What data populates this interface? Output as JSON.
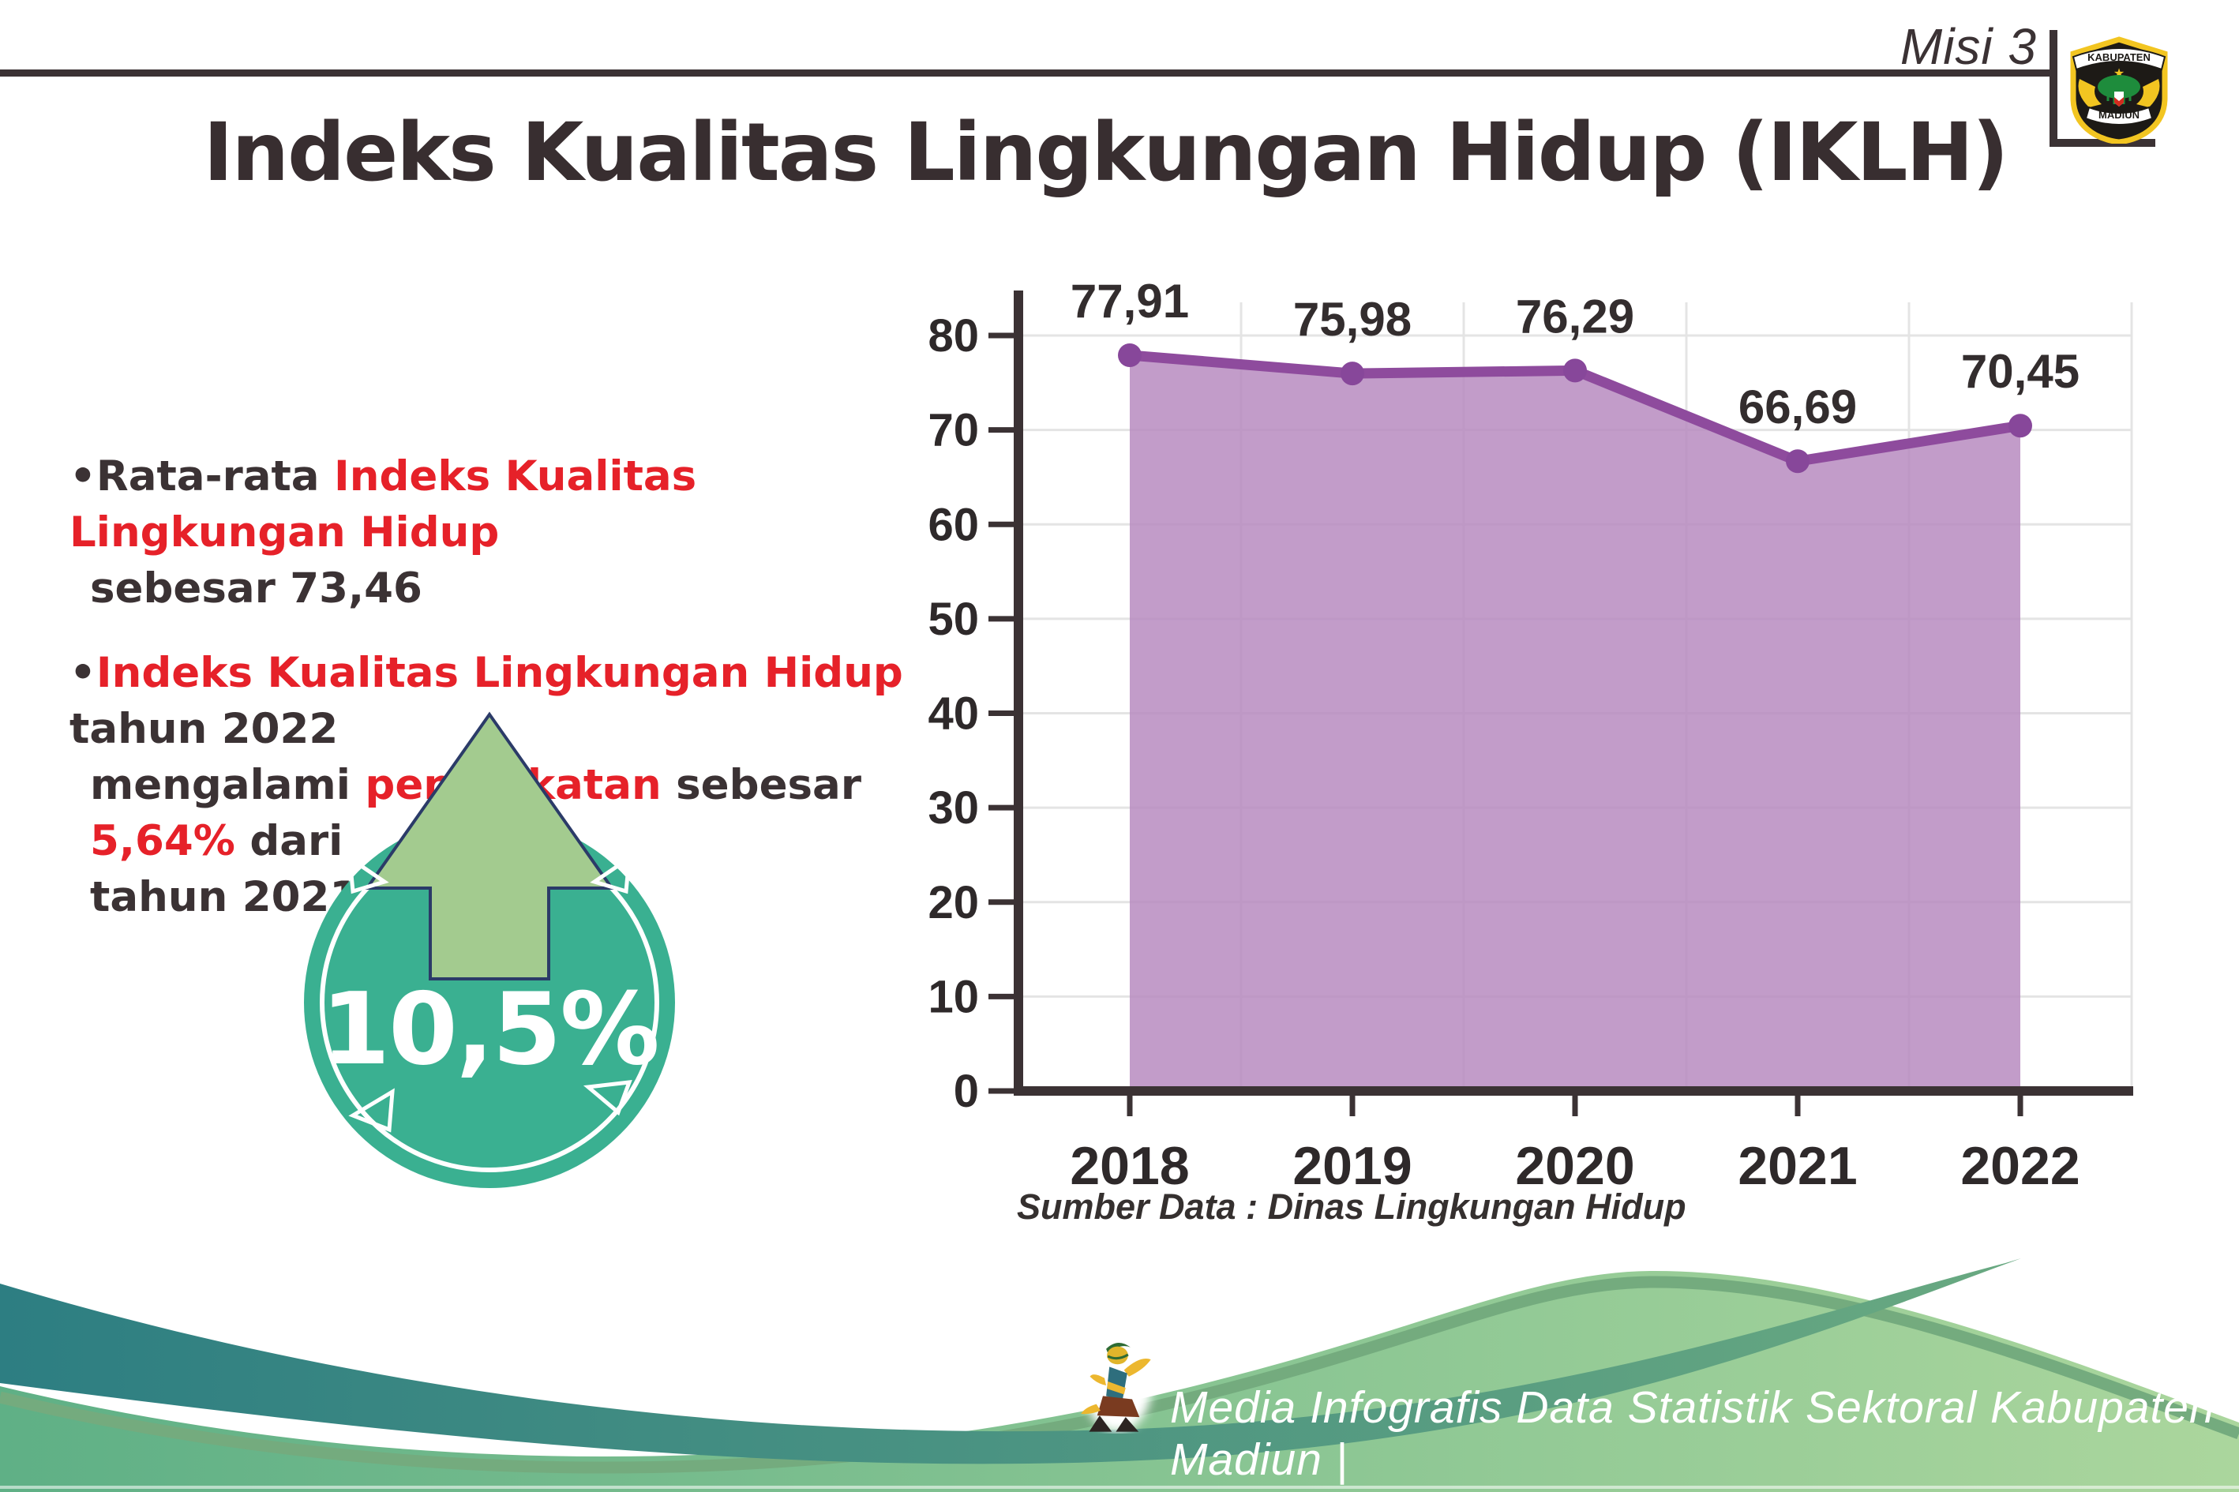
{
  "header": {
    "misi_label": "Misi 3",
    "logo": {
      "top_text": "KABUPATEN",
      "bottom_text": "MADIUN"
    }
  },
  "title": "Indeks Kualitas Lingkungan Hidup (IKLH)",
  "bullets": [
    {
      "marker": "•",
      "lines": [
        [
          {
            "text": "Rata-rata ",
            "color": "dark"
          },
          {
            "text": "Indeks Kualitas Lingkungan Hidup",
            "color": "red"
          }
        ],
        [
          {
            "text": "sebesar 73,46",
            "color": "dark"
          }
        ]
      ]
    },
    {
      "marker": "•",
      "lines": [
        [
          {
            "text": "Indeks Kualitas Lingkungan Hidup",
            "color": "red"
          },
          {
            "text": " tahun 2022",
            "color": "dark"
          }
        ],
        [
          {
            "text": "mengalami ",
            "color": "dark"
          },
          {
            "text": "peningkatan",
            "color": "red"
          },
          {
            "text": " sebesar ",
            "color": "dark"
          },
          {
            "text": "5,64%",
            "color": "red"
          },
          {
            "text": " dari",
            "color": "dark"
          }
        ],
        [
          {
            "text": "tahun 2021",
            "color": "dark"
          }
        ]
      ]
    }
  ],
  "badge": {
    "value": "10,5%",
    "circle_color": "#3ab091",
    "arrow_color": "#a3cb8f",
    "arrow_outline": "#2b3b68"
  },
  "chart_data": {
    "type": "area",
    "categories": [
      "2018",
      "2019",
      "2020",
      "2021",
      "2022"
    ],
    "values": [
      77.91,
      75.98,
      76.29,
      66.69,
      70.45
    ],
    "value_labels": [
      "77,91",
      "75,98",
      "76,29",
      "66,69",
      "70,45"
    ],
    "ylim": [
      0,
      80
    ],
    "ytick_step": 10,
    "grid": true,
    "legend": "none",
    "source": "Sumber Data : Dinas Lingkungan Hidup",
    "colors": {
      "area": "#b78bc0",
      "line": "#8e4b9d",
      "point": "#87479a",
      "axis": "#3b3234",
      "grid": "#e4e4e4",
      "label": "#2e292a"
    }
  },
  "footer": {
    "credit": "Media Infografis Data Statistik Sektoral Kabupaten Madiun |"
  }
}
